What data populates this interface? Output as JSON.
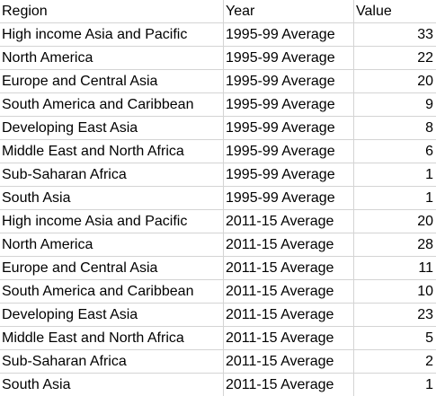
{
  "sheet": {
    "headers": [
      "Region",
      "Year",
      "Value"
    ],
    "rows": [
      [
        "High income Asia and Pacific",
        "1995-99 Average",
        "33"
      ],
      [
        "North America",
        "1995-99 Average",
        "22"
      ],
      [
        "Europe and Central Asia",
        "1995-99 Average",
        "20"
      ],
      [
        "South America and Caribbean",
        "1995-99 Average",
        "9"
      ],
      [
        "Developing East Asia",
        "1995-99 Average",
        "8"
      ],
      [
        "Middle East and North Africa",
        "1995-99 Average",
        "6"
      ],
      [
        "Sub-Saharan Africa",
        "1995-99 Average",
        "1"
      ],
      [
        "South Asia",
        "1995-99 Average",
        "1"
      ],
      [
        "High income Asia and Pacific",
        "2011-15 Average",
        "20"
      ],
      [
        "North America",
        "2011-15 Average",
        "28"
      ],
      [
        "Europe and Central Asia",
        "2011-15 Average",
        "11"
      ],
      [
        "South America and Caribbean",
        "2011-15 Average",
        "10"
      ],
      [
        "Developing East Asia",
        "2011-15 Average",
        "23"
      ],
      [
        "Middle East and North Africa",
        "2011-15 Average",
        "5"
      ],
      [
        "Sub-Saharan Africa",
        "2011-15 Average",
        "2"
      ],
      [
        "South Asia",
        "2011-15 Average",
        "1"
      ]
    ]
  }
}
